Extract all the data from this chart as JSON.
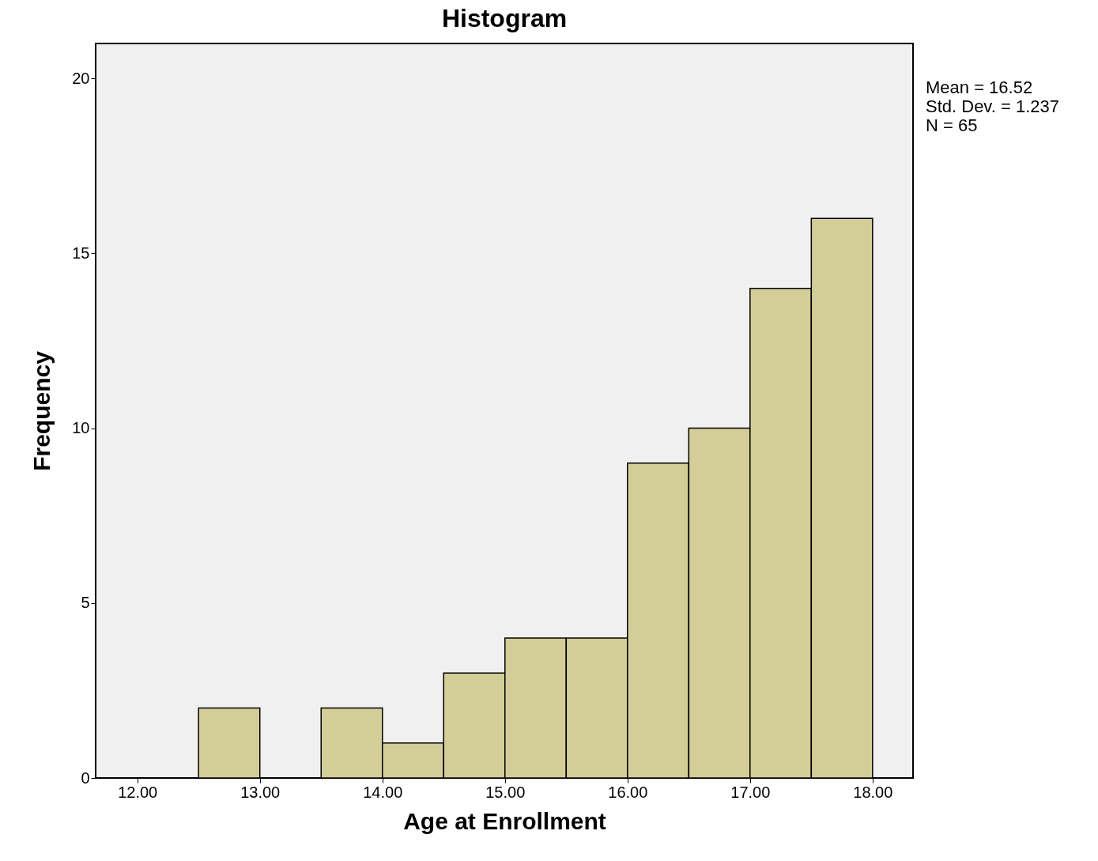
{
  "chart_data": {
    "type": "histogram",
    "title": "Histogram",
    "xlabel": "Age at Enrollment",
    "ylabel": "Frequency",
    "bins": [
      12.5,
      13.0,
      13.5,
      14.0,
      14.5,
      15.0,
      15.5,
      16.0,
      16.5,
      17.0,
      17.5,
      18.0
    ],
    "values": [
      2,
      0,
      2,
      1,
      3,
      4,
      4,
      9,
      10,
      14,
      16
    ],
    "color": "#d3ce97",
    "xlim": [
      11.66,
      18.33
    ],
    "xticks": [
      {
        "value": 12,
        "label": "12.00"
      },
      {
        "value": 13,
        "label": "13.00"
      },
      {
        "value": 14,
        "label": "14.00"
      },
      {
        "value": 15,
        "label": "15.00"
      },
      {
        "value": 16,
        "label": "16.00"
      },
      {
        "value": 17,
        "label": "17.00"
      },
      {
        "value": 18,
        "label": "18.00"
      }
    ],
    "ylim": [
      0,
      21
    ],
    "yticks": [
      0,
      5,
      10,
      15,
      20
    ],
    "grid": false,
    "annotations": [
      "Mean = 16.52",
      "Std. Dev. = 1.237",
      "N = 65"
    ]
  }
}
